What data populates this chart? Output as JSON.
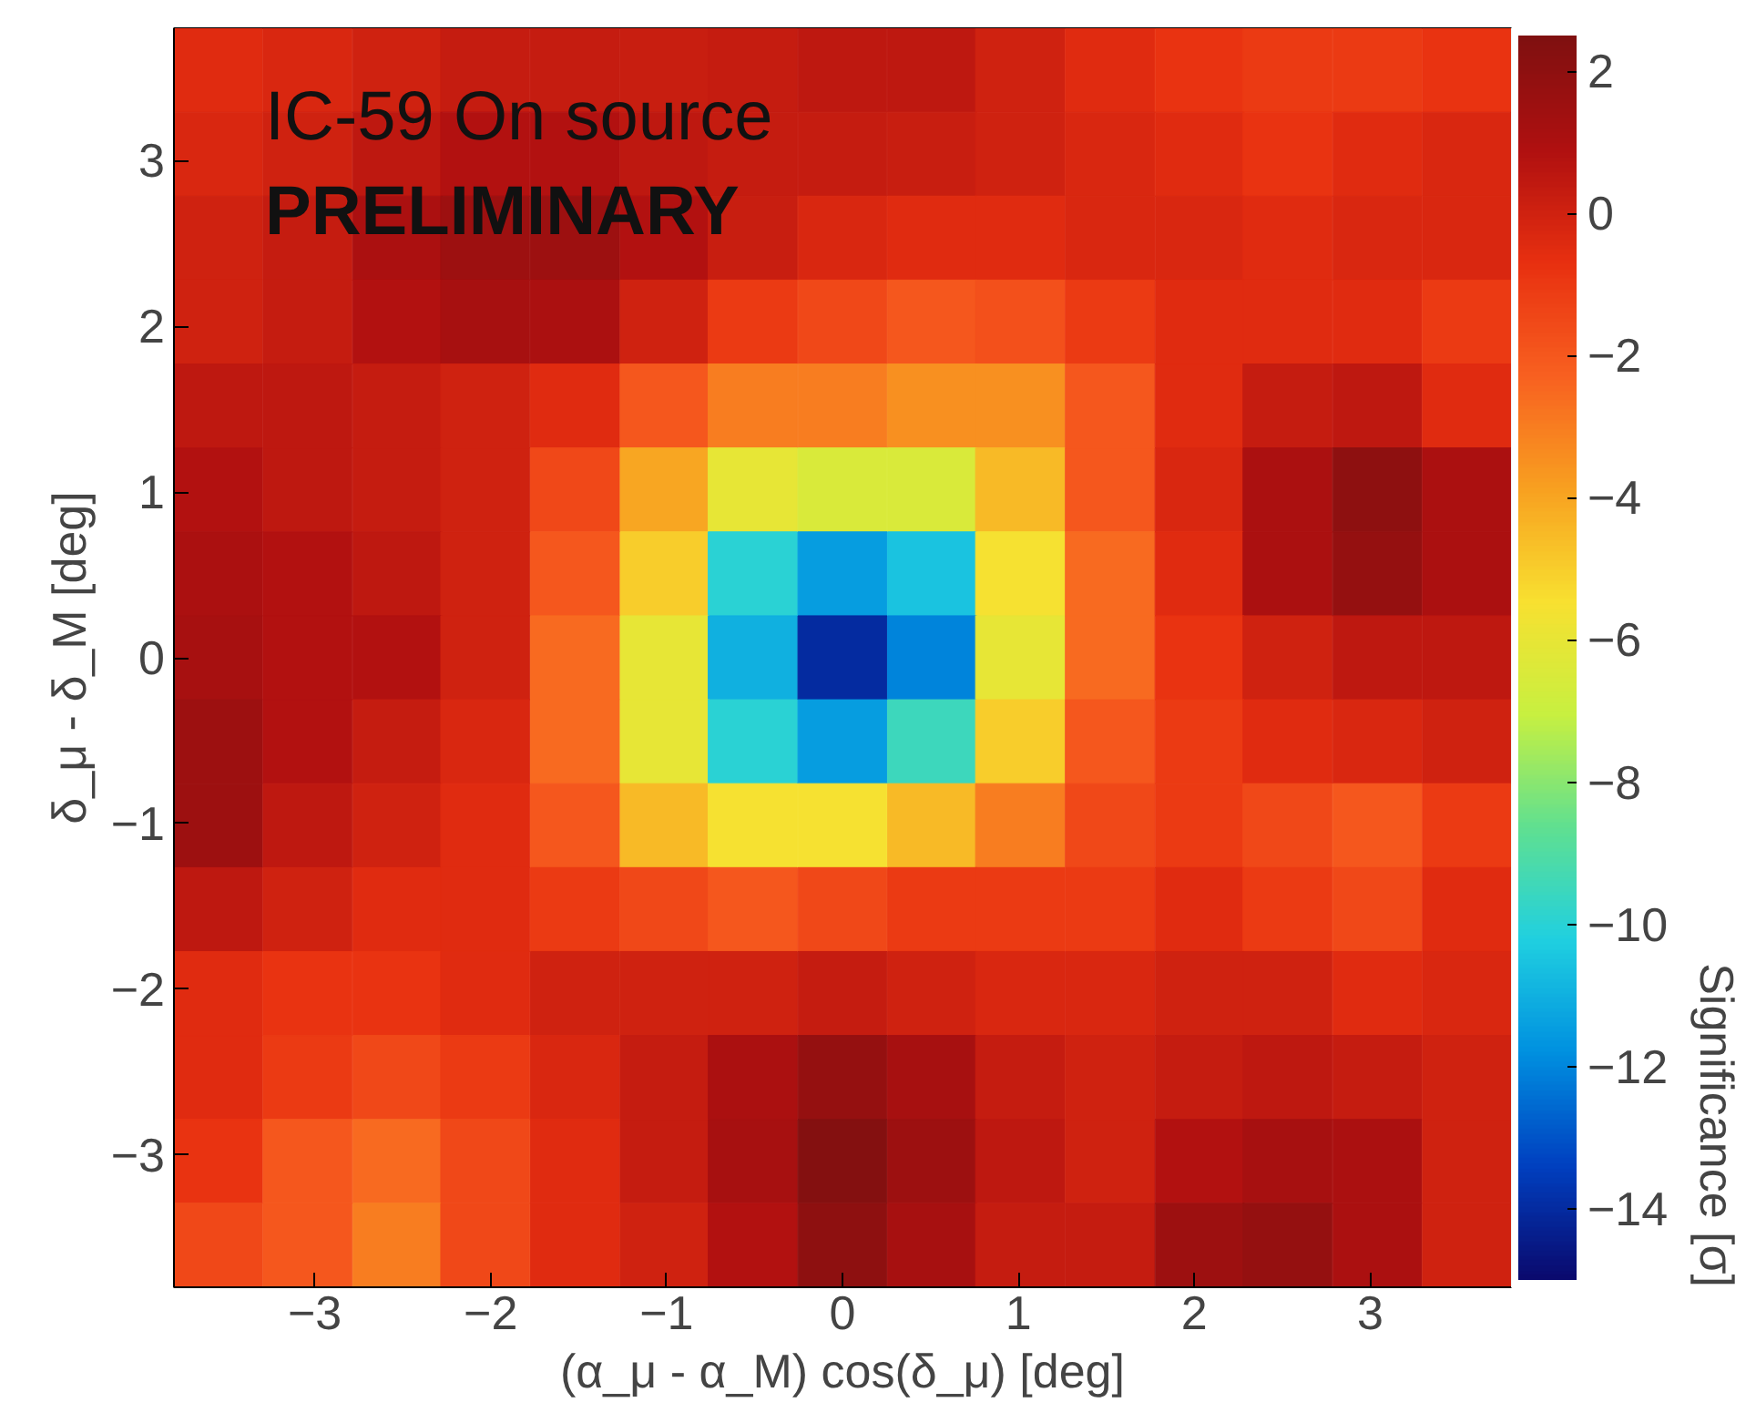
{
  "chart_data": {
    "type": "heatmap",
    "xlabel": "(α_μ - α_M) cos(δ_μ) [deg]",
    "ylabel": "δ_μ - δ_M [deg]",
    "clabel": "Significance [σ]",
    "annotations": [
      "IC-59 On source",
      "PRELIMINARY"
    ],
    "x": [
      -3.55,
      -3.04,
      -2.53,
      -2.03,
      -1.52,
      -1.01,
      -0.51,
      0,
      0.51,
      1.01,
      1.52,
      2.03,
      2.53,
      3.04,
      3.55
    ],
    "xlim": [
      -3.8,
      3.8
    ],
    "ylim": [
      -3.8,
      3.8
    ],
    "xticks": [
      -3,
      -2,
      -1,
      0,
      1,
      2,
      3
    ],
    "yticks": [
      -3,
      -2,
      -1,
      0,
      1,
      2,
      3
    ],
    "clim": [
      -15,
      2.5
    ],
    "cticks": [
      -14,
      -12,
      -10,
      -8,
      -6,
      -4,
      -2,
      0,
      2
    ],
    "cells": [
      [
        -0.5,
        -0.3,
        0,
        0.3,
        0.3,
        0.2,
        0.3,
        0.5,
        0.5,
        0,
        -0.5,
        -0.8,
        -1,
        -1,
        -0.8
      ],
      [
        -0.3,
        0,
        0.5,
        0.8,
        0.8,
        0.5,
        0.3,
        0.3,
        0.2,
        0,
        -0.3,
        -0.5,
        -0.8,
        -0.5,
        -0.3
      ],
      [
        0,
        0.3,
        1.0,
        1.5,
        1.5,
        0.8,
        0.2,
        -0.3,
        -0.5,
        -0.5,
        -0.3,
        -0.3,
        -0.5,
        -0.3,
        -0.3
      ],
      [
        0,
        0.3,
        0.8,
        1.2,
        1.0,
        0,
        -1,
        -1.5,
        -2,
        -1.8,
        -1,
        -0.5,
        -0.5,
        -0.5,
        -1
      ],
      [
        0.5,
        0.5,
        0.3,
        0,
        -0.5,
        -2,
        -3,
        -3,
        -3.5,
        -3.5,
        -2,
        -0.5,
        0.3,
        0.5,
        -0.5
      ],
      [
        0.8,
        0.5,
        0.3,
        0,
        -1.5,
        -4,
        -6,
        -6.5,
        -6.5,
        -4.5,
        -2,
        -0.3,
        1,
        2,
        1
      ],
      [
        1,
        0.8,
        0.5,
        0,
        -2,
        -5,
        -10,
        -11.5,
        -10.5,
        -5.5,
        -2.5,
        -0.5,
        1,
        1.8,
        1
      ],
      [
        1.2,
        0.8,
        0.8,
        0,
        -2.5,
        -6,
        -11,
        -14,
        -12,
        -6,
        -2.5,
        -0.8,
        0,
        0.5,
        0.5
      ],
      [
        1.5,
        0.8,
        0.3,
        -0.3,
        -2.5,
        -6,
        -10,
        -11.5,
        -9.5,
        -5,
        -2,
        -1,
        -0.5,
        -0.3,
        0
      ],
      [
        1.5,
        0.5,
        0,
        -0.5,
        -2,
        -4.5,
        -5.5,
        -5.5,
        -4.5,
        -3,
        -1.5,
        -1,
        -1.5,
        -2,
        -1
      ],
      [
        0.5,
        0,
        -0.5,
        -0.5,
        -1,
        -1.5,
        -2,
        -1.5,
        -1,
        -1,
        -1,
        -0.5,
        -1,
        -1.5,
        -0.5
      ],
      [
        -0.5,
        -0.8,
        -0.8,
        -0.5,
        0,
        0,
        0,
        0.3,
        0,
        -0.3,
        -0.3,
        0,
        0,
        -0.5,
        -0.3
      ],
      [
        -0.5,
        -1,
        -1.5,
        -1,
        -0.3,
        0.3,
        1,
        1.8,
        1.2,
        0.3,
        0,
        0.3,
        0.5,
        0.3,
        0
      ],
      [
        -0.8,
        -2,
        -2.5,
        -1.5,
        -0.5,
        0.3,
        1.2,
        2.3,
        1.5,
        0.5,
        0,
        0.8,
        1.2,
        1,
        0
      ],
      [
        -1.5,
        -2,
        -3,
        -1.5,
        -0.5,
        0,
        0.8,
        2,
        1.2,
        0.3,
        0.3,
        1.5,
        1.8,
        1,
        0
      ]
    ]
  }
}
